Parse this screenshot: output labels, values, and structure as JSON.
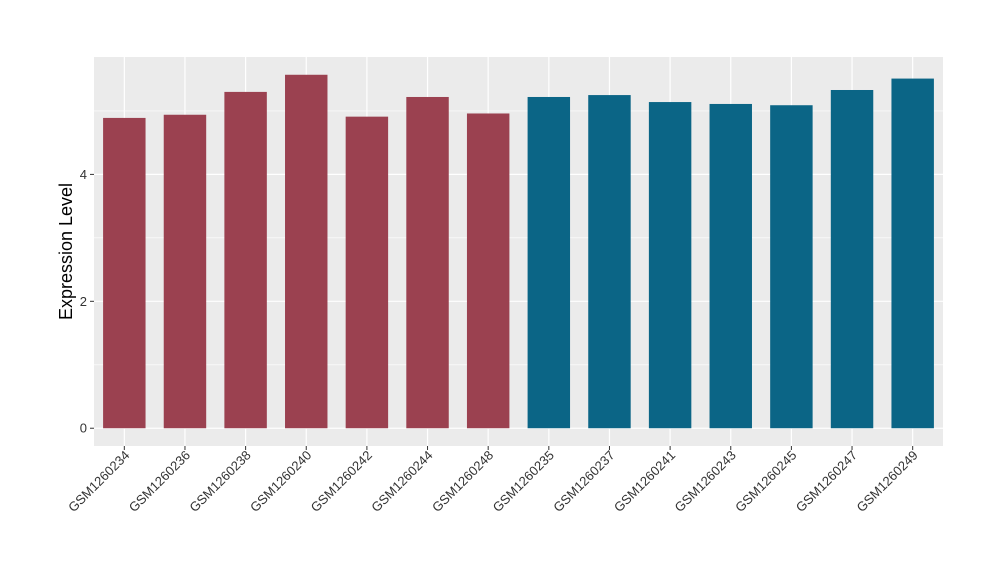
{
  "chart_data": {
    "type": "bar",
    "title": "",
    "xlabel": "",
    "ylabel": "Expression Level",
    "ylim": [
      -0.28,
      5.85
    ],
    "yticks": [
      0,
      2,
      4
    ],
    "grid": true,
    "legend": "none",
    "categories": [
      "GSM1260234",
      "GSM1260236",
      "GSM1260238",
      "GSM1260240",
      "GSM1260242",
      "GSM1260244",
      "GSM1260248",
      "GSM1260235",
      "GSM1260237",
      "GSM1260241",
      "GSM1260243",
      "GSM1260245",
      "GSM1260247",
      "GSM1260249"
    ],
    "values": [
      4.89,
      4.94,
      5.3,
      5.57,
      4.91,
      5.22,
      4.96,
      5.22,
      5.25,
      5.14,
      5.11,
      5.09,
      5.33,
      5.51
    ],
    "groups": [
      "g1",
      "g1",
      "g1",
      "g1",
      "g1",
      "g1",
      "g1",
      "g2",
      "g2",
      "g2",
      "g2",
      "g2",
      "g2",
      "g2"
    ],
    "colors": {
      "g1": "#9b4150",
      "g2": "#0b6586"
    },
    "panel_color": "#ebebeb",
    "grid_color": "#ffffff"
  }
}
